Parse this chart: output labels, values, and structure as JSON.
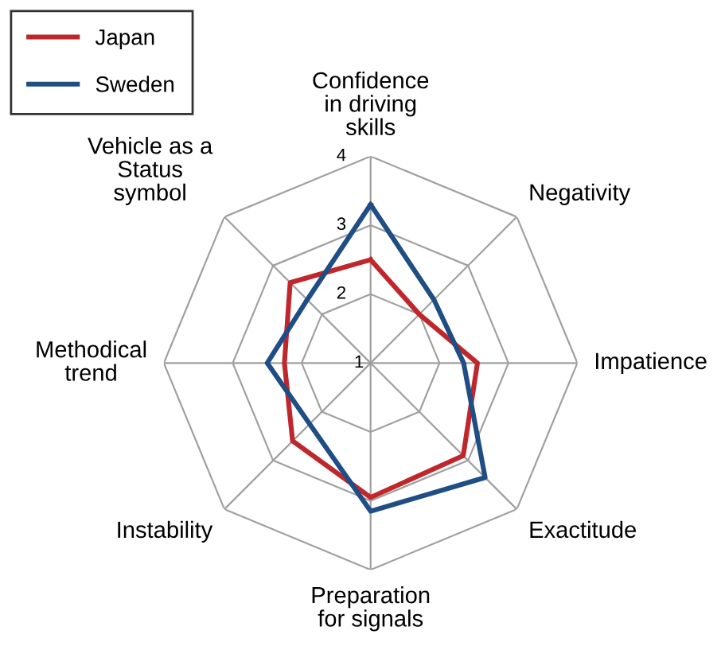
{
  "chart_data": {
    "type": "radar",
    "categories": [
      "Confidence\nin driving\nskills",
      "Negativity",
      "Impatience",
      "Exactitude",
      "Preparation\nfor signals",
      "Instability",
      "Methodical\ntrend",
      "Vehicle as a\nStatus\nsymbol"
    ],
    "series": [
      {
        "name": "Japan",
        "color": "#c0272d",
        "values": [
          2.5,
          2.0,
          2.55,
          2.9,
          2.95,
          2.6,
          2.25,
          2.65
        ]
      },
      {
        "name": "Sweden",
        "color": "#1f4e85",
        "values": [
          3.3,
          2.3,
          2.35,
          3.35,
          3.15,
          2.25,
          2.5,
          2.3
        ]
      }
    ],
    "ylim": [
      1,
      4
    ],
    "yticks": [
      1,
      2,
      3,
      4
    ],
    "grid": true,
    "legend": "top left",
    "marker": "none",
    "line_style": "solid"
  }
}
